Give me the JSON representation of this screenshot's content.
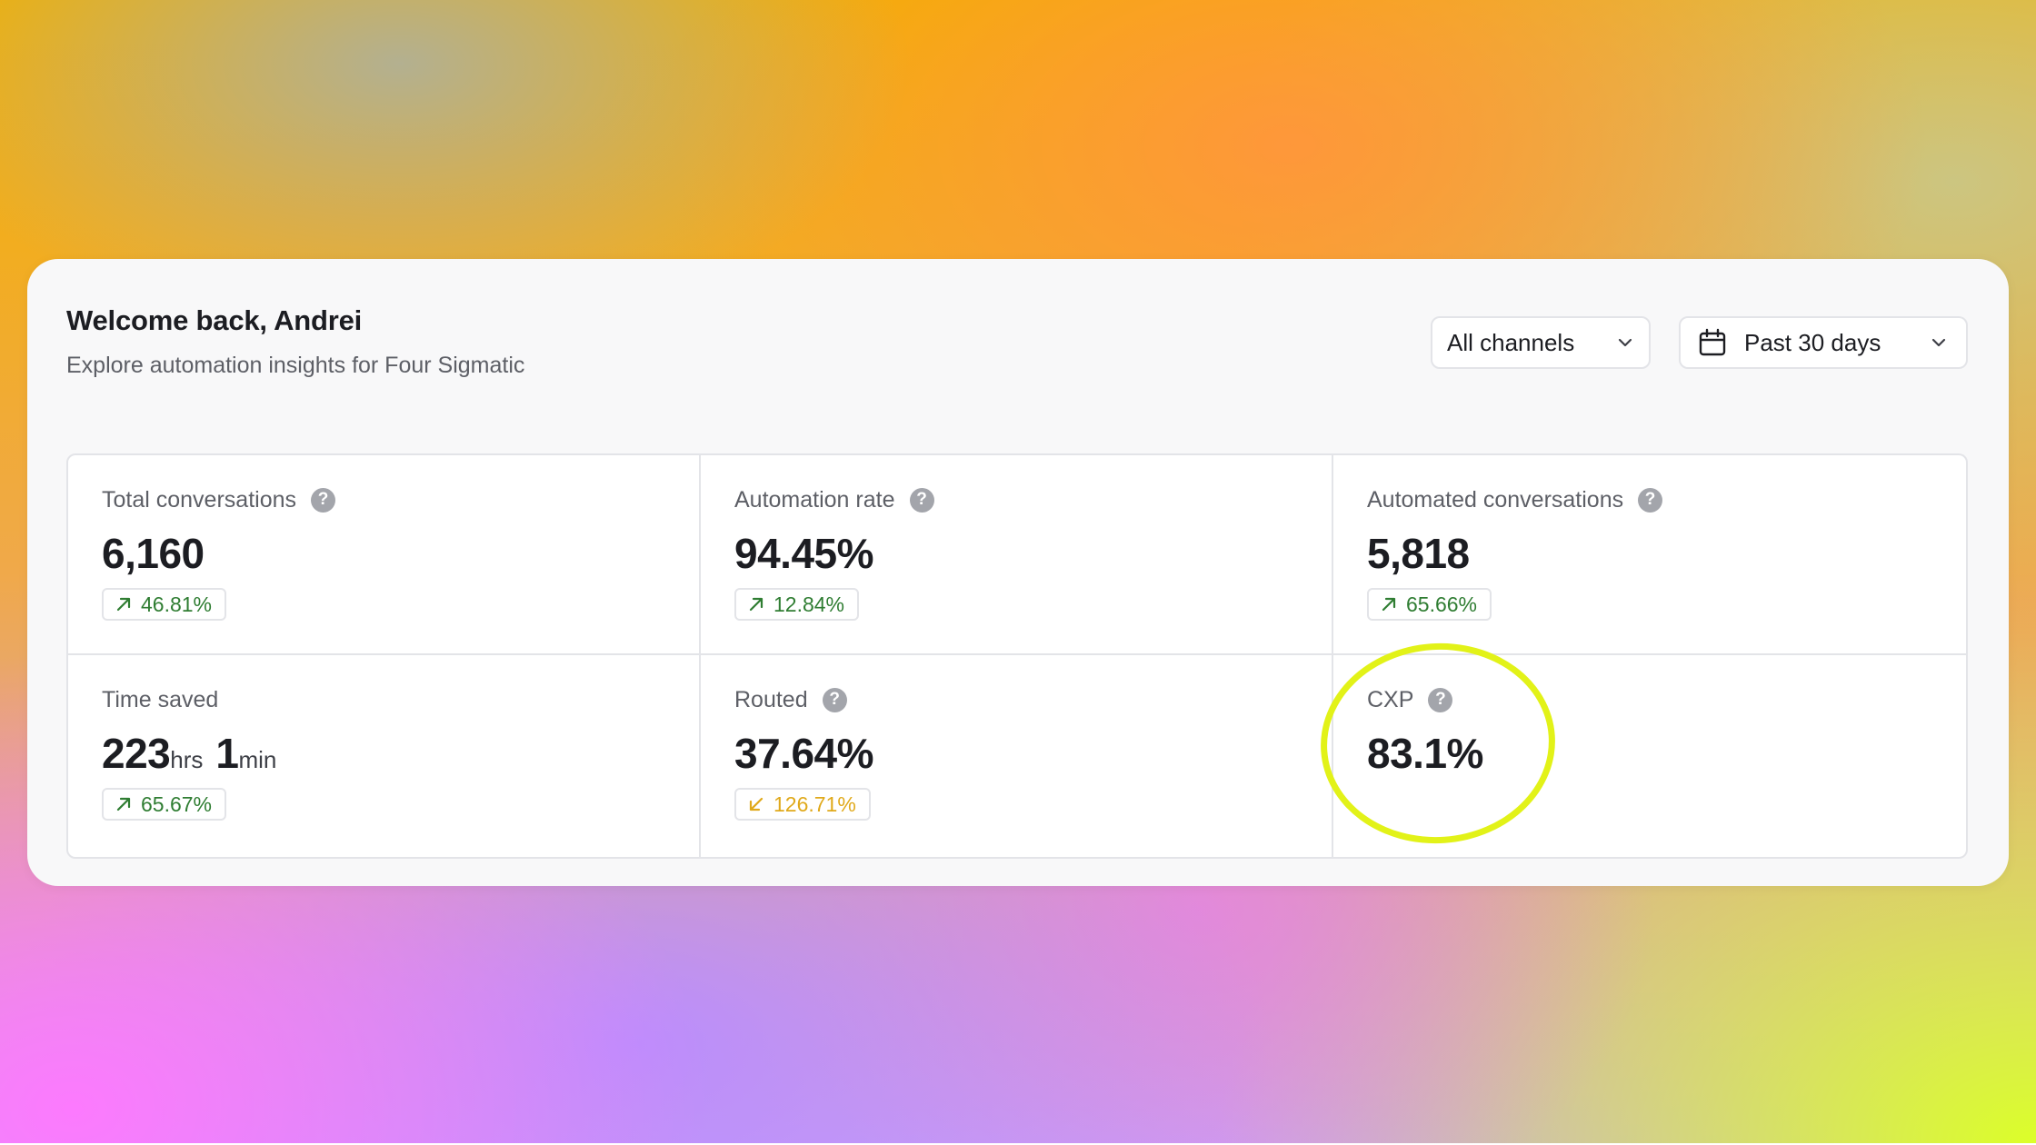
{
  "header": {
    "title": "Welcome back, Andrei",
    "subtitle": "Explore automation insights for Four Sigmatic"
  },
  "filters": {
    "channel": {
      "label": "All channels",
      "icon": "chevron-down-icon"
    },
    "date_range": {
      "label": "Past 30 days",
      "icon": "calendar-icon",
      "chevron": "chevron-down-icon"
    }
  },
  "metrics": [
    {
      "label": "Total conversations",
      "value": "6,160",
      "trend": "46.81%",
      "direction": "up"
    },
    {
      "label": "Automation rate",
      "value": "94.45%",
      "trend": "12.84%",
      "direction": "up"
    },
    {
      "label": "Automated conversations",
      "value": "5,818",
      "trend": "65.66%",
      "direction": "up"
    },
    {
      "label": "Time saved",
      "value_hours": "223",
      "unit_hours": "hrs",
      "value_minutes": "1",
      "unit_minutes": "min",
      "trend": "65.67%",
      "direction": "up"
    },
    {
      "label": "Routed",
      "value": "37.64%",
      "trend": "126.71%",
      "direction": "down"
    },
    {
      "label": "CXP",
      "value": "83.1%"
    }
  ],
  "help_glyph": "?",
  "colors": {
    "trend_up": "#2f7d32",
    "trend_down": "#e0a91a",
    "highlight": "#e2f218"
  }
}
